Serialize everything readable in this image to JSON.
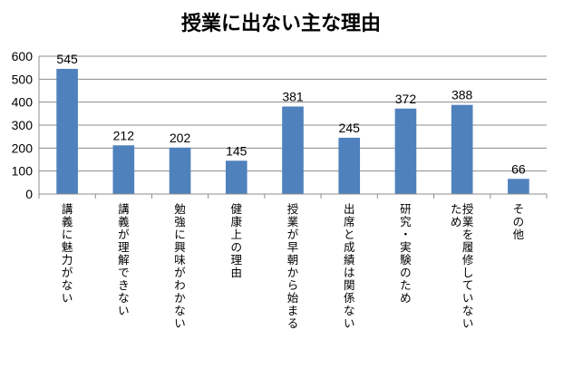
{
  "chart_data": {
    "type": "bar",
    "title": "授業に出ない主な理由",
    "xlabel": "",
    "ylabel": "",
    "ylim": [
      0,
      600
    ],
    "yticks": [
      0,
      100,
      200,
      300,
      400,
      500,
      600
    ],
    "grid": true,
    "legend": "none",
    "bar_color": "#4f81bd",
    "categories": [
      "講義に魅力がない",
      "講義が理解できない",
      "勉強に興味がわかない",
      "健康上の理由",
      "授業が早朝から始まる",
      "出席と成績は関係ない",
      "研究・実験のため",
      "授業を履修していないため",
      "その他"
    ],
    "values": [
      545,
      212,
      202,
      145,
      381,
      245,
      372,
      388,
      66
    ]
  }
}
